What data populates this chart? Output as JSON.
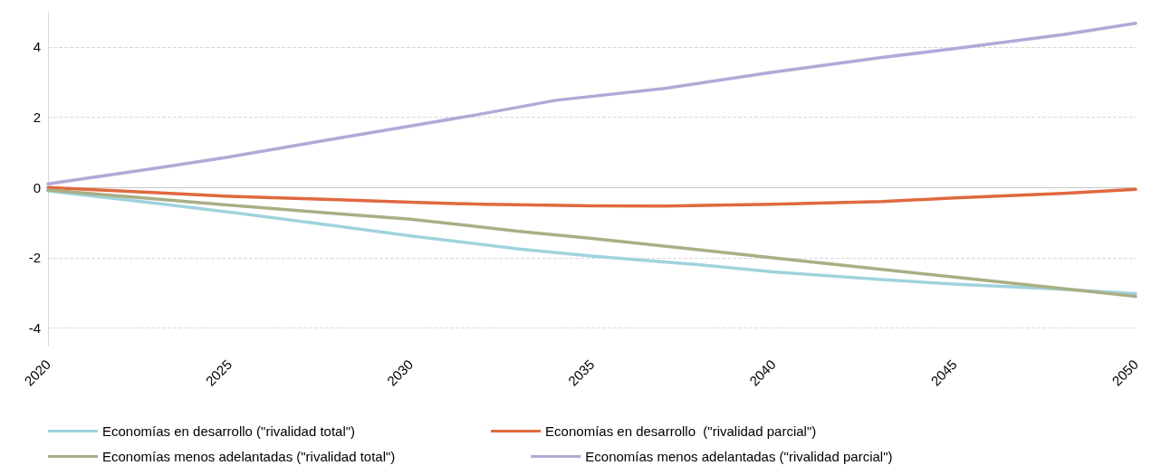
{
  "chart_data": {
    "type": "line",
    "xlim": [
      2020,
      2050
    ],
    "xticks": [
      2020,
      2025,
      2030,
      2035,
      2040,
      2045,
      2050
    ],
    "ylim": [
      -4.5,
      5
    ],
    "yticks": [
      -4,
      -2,
      0,
      2,
      4
    ],
    "grid": "y",
    "legend": "bottom",
    "marker": "none",
    "line_style": "solid",
    "series": [
      {
        "name": "Economías en desarrollo (\"rivalidad total\")",
        "color": "#9fd3dc",
        "x": [
          2020,
          2023,
          2025,
          2028,
          2030,
          2033,
          2035,
          2038,
          2040,
          2043,
          2045,
          2048,
          2050
        ],
        "values": [
          -0.1,
          -0.45,
          -0.7,
          -1.1,
          -1.38,
          -1.75,
          -1.95,
          -2.2,
          -2.4,
          -2.62,
          -2.75,
          -2.9,
          -3.02
        ]
      },
      {
        "name": "Economías en desarrollo  (\"rivalidad parcial\")",
        "color": "#e0693f",
        "x": [
          2020,
          2023,
          2025,
          2028,
          2030,
          2032,
          2035,
          2037,
          2040,
          2043,
          2045,
          2048,
          2050
        ],
        "values": [
          0,
          -0.15,
          -0.25,
          -0.35,
          -0.42,
          -0.48,
          -0.52,
          -0.53,
          -0.48,
          -0.4,
          -0.3,
          -0.17,
          -0.05
        ]
      },
      {
        "name": "Economías menos adelantadas (\"rivalidad total\")",
        "color": "#a9ae84",
        "x": [
          2020,
          2023,
          2025,
          2028,
          2030,
          2033,
          2035,
          2038,
          2040,
          2043,
          2045,
          2048,
          2050
        ],
        "values": [
          -0.07,
          -0.33,
          -0.5,
          -0.75,
          -0.9,
          -1.25,
          -1.45,
          -1.78,
          -2.0,
          -2.33,
          -2.55,
          -2.88,
          -3.1
        ]
      },
      {
        "name": "Economías menos adelantadas (\"rivalidad parcial\")",
        "color": "#b3a8d6",
        "x": [
          2020,
          2023,
          2025,
          2028,
          2030,
          2032,
          2034,
          2037,
          2040,
          2043,
          2045,
          2048,
          2050
        ],
        "values": [
          0.1,
          0.55,
          0.87,
          1.4,
          1.75,
          2.1,
          2.48,
          2.82,
          3.28,
          3.7,
          3.95,
          4.35,
          4.67
        ]
      }
    ]
  }
}
